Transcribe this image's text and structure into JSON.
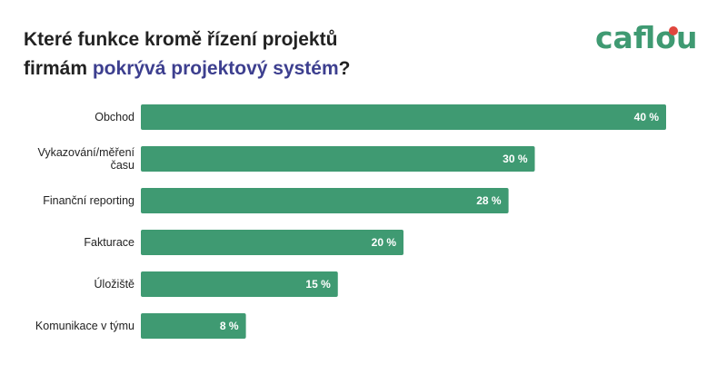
{
  "header": {
    "title_line1": "Které funkce kromě řízení projektů",
    "title_line2_prefix": "firmám ",
    "title_line2_highlight": "pokrývá projektový systém",
    "title_line2_suffix": "?"
  },
  "logo": {
    "text": "caflou",
    "color": "#3f9a72",
    "accent_color": "#e0463e"
  },
  "colors": {
    "bar": "#3f9a72",
    "title": "#222222",
    "title_highlight": "#3d3f8f"
  },
  "chart_data": {
    "type": "bar",
    "orientation": "horizontal",
    "categories": [
      [
        "Obchod"
      ],
      [
        "Vykazování/měření",
        "času"
      ],
      [
        "Finanční reporting"
      ],
      [
        "Fakturace"
      ],
      [
        "Úložiště"
      ],
      [
        "Komunikace v týmu"
      ]
    ],
    "values": [
      40,
      30,
      28,
      20,
      15,
      8
    ],
    "value_labels": [
      "40 %",
      "30 %",
      "28 %",
      "20 %",
      "15 %",
      "8 %"
    ],
    "xlim": [
      0,
      40
    ],
    "grid": false,
    "legend": "none"
  }
}
